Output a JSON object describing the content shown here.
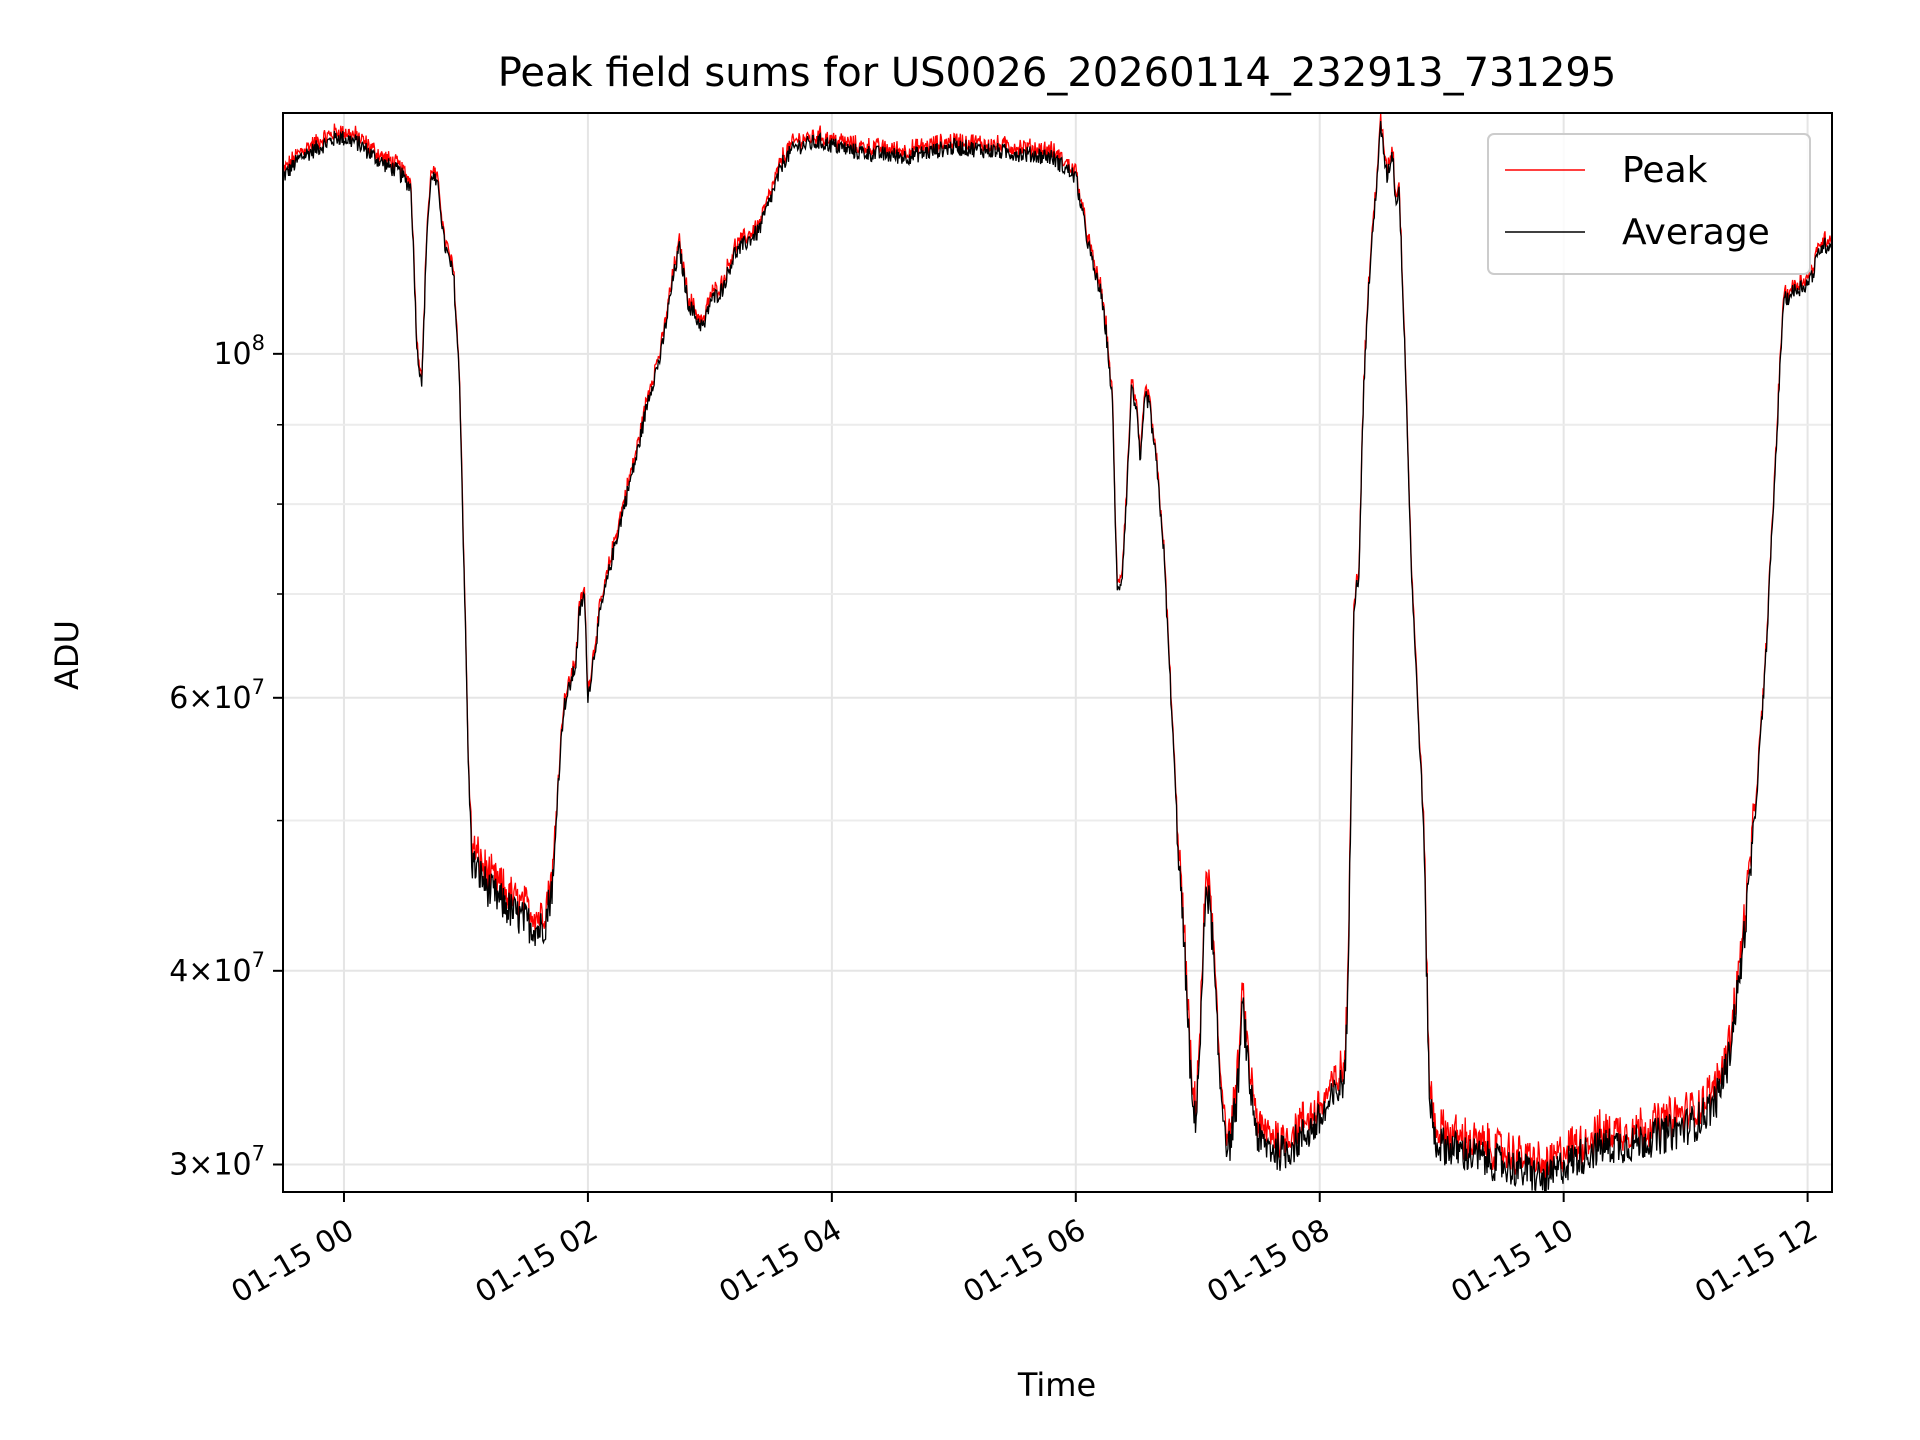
{
  "chart_data": {
    "type": "line",
    "title": "Peak field sums for US0026_20260114_232913_731295",
    "xlabel": "Time",
    "ylabel": "ADU",
    "yscale": "log",
    "ylim": [
      28800000,
      143000000
    ],
    "xlim_hours": [
      -0.5,
      12.2
    ],
    "grid": true,
    "legend_position": "top-right",
    "x_tick_labels": [
      "01-15 00",
      "01-15 02",
      "01-15 04",
      "01-15 06",
      "01-15 08",
      "01-15 10",
      "01-15 12"
    ],
    "x_tick_hours": [
      0,
      2,
      4,
      6,
      8,
      10,
      12
    ],
    "y_major_ticks": [
      {
        "value": 30000000,
        "mantissa": "3",
        "base": "10",
        "exp": "7"
      },
      {
        "value": 40000000,
        "mantissa": "4",
        "base": "10",
        "exp": "7"
      },
      {
        "value": 60000000,
        "mantissa": "6",
        "base": "10",
        "exp": "7"
      },
      {
        "value": 100000000,
        "mantissa": "",
        "base": "10",
        "exp": "8"
      }
    ],
    "y_minor_ticks": [
      50000000,
      70000000,
      80000000,
      90000000
    ],
    "series": [
      {
        "name": "Peak",
        "color": "#ff0000"
      },
      {
        "name": "Average",
        "color": "#000000"
      }
    ],
    "noise_fraction": 0.018,
    "peak_offset_fraction": 0.012,
    "average_curve": [
      [
        -0.5,
        130000000
      ],
      [
        -0.35,
        134000000
      ],
      [
        -0.2,
        136000000
      ],
      [
        -0.05,
        138000000
      ],
      [
        0.1,
        137000000
      ],
      [
        0.3,
        133000000
      ],
      [
        0.45,
        131000000
      ],
      [
        0.55,
        128000000
      ],
      [
        0.6,
        100000000
      ],
      [
        0.64,
        96000000
      ],
      [
        0.68,
        120000000
      ],
      [
        0.72,
        131000000
      ],
      [
        0.78,
        127000000
      ],
      [
        0.82,
        118000000
      ],
      [
        0.86,
        115000000
      ],
      [
        0.9,
        112000000
      ],
      [
        0.95,
        95000000
      ],
      [
        1.0,
        64000000
      ],
      [
        1.02,
        54000000
      ],
      [
        1.05,
        47000000
      ],
      [
        1.2,
        45000000
      ],
      [
        1.4,
        43500000
      ],
      [
        1.6,
        42500000
      ],
      [
        1.65,
        43000000
      ],
      [
        1.72,
        46000000
      ],
      [
        1.75,
        52000000
      ],
      [
        1.8,
        59000000
      ],
      [
        1.85,
        61000000
      ],
      [
        1.9,
        63000000
      ],
      [
        1.93,
        68000000
      ],
      [
        1.97,
        70000000
      ],
      [
        2.0,
        60000000
      ],
      [
        2.1,
        68000000
      ],
      [
        2.2,
        74000000
      ],
      [
        2.3,
        80000000
      ],
      [
        2.4,
        86000000
      ],
      [
        2.5,
        94000000
      ],
      [
        2.6,
        100000000
      ],
      [
        2.7,
        112000000
      ],
      [
        2.75,
        117000000
      ],
      [
        2.82,
        108000000
      ],
      [
        2.9,
        105000000
      ],
      [
        2.95,
        104000000
      ],
      [
        3.0,
        108000000
      ],
      [
        3.1,
        110000000
      ],
      [
        3.2,
        116000000
      ],
      [
        3.3,
        118000000
      ],
      [
        3.4,
        120000000
      ],
      [
        3.5,
        126000000
      ],
      [
        3.6,
        133000000
      ],
      [
        3.7,
        136000000
      ],
      [
        3.9,
        137000000
      ],
      [
        4.2,
        135000000
      ],
      [
        4.6,
        134000000
      ],
      [
        5.0,
        136000000
      ],
      [
        5.4,
        135000000
      ],
      [
        5.8,
        134000000
      ],
      [
        5.95,
        131000000
      ],
      [
        6.0,
        130000000
      ],
      [
        6.08,
        120000000
      ],
      [
        6.15,
        113000000
      ],
      [
        6.2,
        110000000
      ],
      [
        6.25,
        103000000
      ],
      [
        6.3,
        93000000
      ],
      [
        6.34,
        70000000
      ],
      [
        6.38,
        72000000
      ],
      [
        6.42,
        82000000
      ],
      [
        6.46,
        96000000
      ],
      [
        6.5,
        91000000
      ],
      [
        6.53,
        85000000
      ],
      [
        6.57,
        94000000
      ],
      [
        6.6,
        93000000
      ],
      [
        6.66,
        85000000
      ],
      [
        6.72,
        75000000
      ],
      [
        6.78,
        60000000
      ],
      [
        6.84,
        48000000
      ],
      [
        6.9,
        40000000
      ],
      [
        6.95,
        33000000
      ],
      [
        6.98,
        32000000
      ],
      [
        7.02,
        36000000
      ],
      [
        7.07,
        46000000
      ],
      [
        7.12,
        42000000
      ],
      [
        7.18,
        34000000
      ],
      [
        7.25,
        30500000
      ],
      [
        7.32,
        33000000
      ],
      [
        7.37,
        38000000
      ],
      [
        7.42,
        34000000
      ],
      [
        7.5,
        31000000
      ],
      [
        7.7,
        30500000
      ],
      [
        8.0,
        32000000
      ],
      [
        8.2,
        34000000
      ],
      [
        8.23,
        38000000
      ],
      [
        8.28,
        69000000
      ],
      [
        8.32,
        72000000
      ],
      [
        8.36,
        95000000
      ],
      [
        8.4,
        110000000
      ],
      [
        8.45,
        124000000
      ],
      [
        8.5,
        140000000
      ],
      [
        8.55,
        130000000
      ],
      [
        8.6,
        135000000
      ],
      [
        8.62,
        125000000
      ],
      [
        8.65,
        128000000
      ],
      [
        8.7,
        100000000
      ],
      [
        8.75,
        73000000
      ],
      [
        8.8,
        60000000
      ],
      [
        8.85,
        50000000
      ],
      [
        8.9,
        33000000
      ],
      [
        8.95,
        31000000
      ],
      [
        9.2,
        30500000
      ],
      [
        9.5,
        30000000
      ],
      [
        9.75,
        29600000
      ],
      [
        9.85,
        29200000
      ],
      [
        10.0,
        30000000
      ],
      [
        10.3,
        30800000
      ],
      [
        10.6,
        31000000
      ],
      [
        10.9,
        31500000
      ],
      [
        11.1,
        32000000
      ],
      [
        11.25,
        33000000
      ],
      [
        11.35,
        35000000
      ],
      [
        11.45,
        40000000
      ],
      [
        11.55,
        48000000
      ],
      [
        11.65,
        62000000
      ],
      [
        11.72,
        80000000
      ],
      [
        11.78,
        100000000
      ],
      [
        11.8,
        108000000
      ],
      [
        11.9,
        110000000
      ],
      [
        12.0,
        111000000
      ],
      [
        12.05,
        113000000
      ],
      [
        12.1,
        117000000
      ],
      [
        12.2,
        118000000
      ]
    ]
  }
}
